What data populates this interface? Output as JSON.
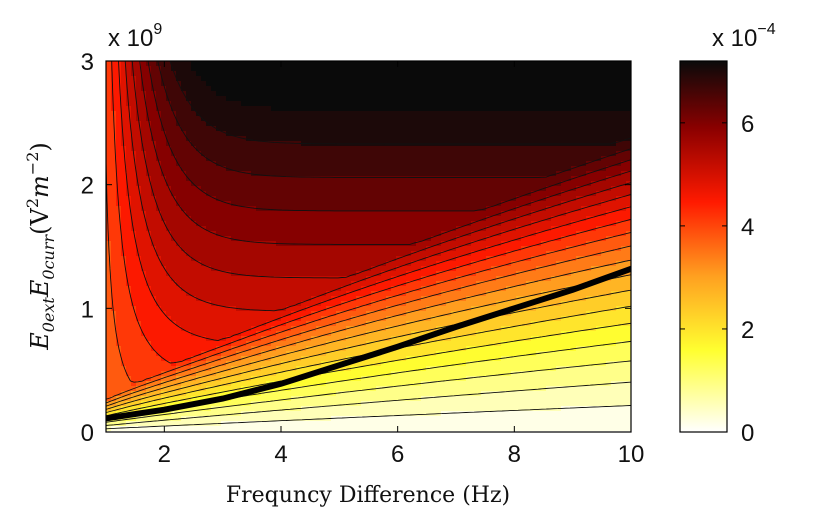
{
  "chart_data": {
    "type": "heatmap",
    "subtype": "filled-contour",
    "xlabel": "Frequncy Difference (Hz)",
    "ylabel": "E_{0ext}E_{0curr}(V^2m^-2)",
    "ylabel_parts": {
      "main": "E",
      "sub1": "0ext",
      "main2": "E",
      "sub2": "0curr",
      "unit_open": "(V",
      "unit_sup1": "2",
      "unit_m": "m",
      "unit_sup2": "−2",
      "unit_close": ")"
    },
    "xlim": [
      1,
      10
    ],
    "ylim": [
      0,
      3000000000
    ],
    "x_ticks": [
      2,
      4,
      6,
      8,
      10
    ],
    "x_tick_labels": [
      "2",
      "4",
      "6",
      "8",
      "10"
    ],
    "y_ticks": [
      0,
      1000000000,
      2000000000,
      3000000000
    ],
    "y_tick_labels": [
      "0",
      "1",
      "2",
      "3"
    ],
    "y_exponent_label": {
      "base": "x 10",
      "exp": "9"
    },
    "colorbar": {
      "range": [
        0,
        0.00072
      ],
      "ticks": [
        0,
        0.0002,
        0.0004,
        0.0006
      ],
      "tick_labels": [
        "0",
        "2",
        "4",
        "6"
      ],
      "exponent_label": {
        "base": "x 10",
        "exp": "−4"
      },
      "colormap": "hot (reversed)"
    },
    "contour_levels": 20,
    "highlighted_line": {
      "description": "thick black curve",
      "x": [
        1,
        2,
        3,
        4,
        5,
        6,
        7,
        8,
        9,
        10
      ],
      "y": [
        110000000,
        180000000,
        270000000,
        390000000,
        540000000,
        690000000,
        850000000,
        1000000000,
        1150000000,
        1320000000
      ]
    },
    "grid": false
  }
}
